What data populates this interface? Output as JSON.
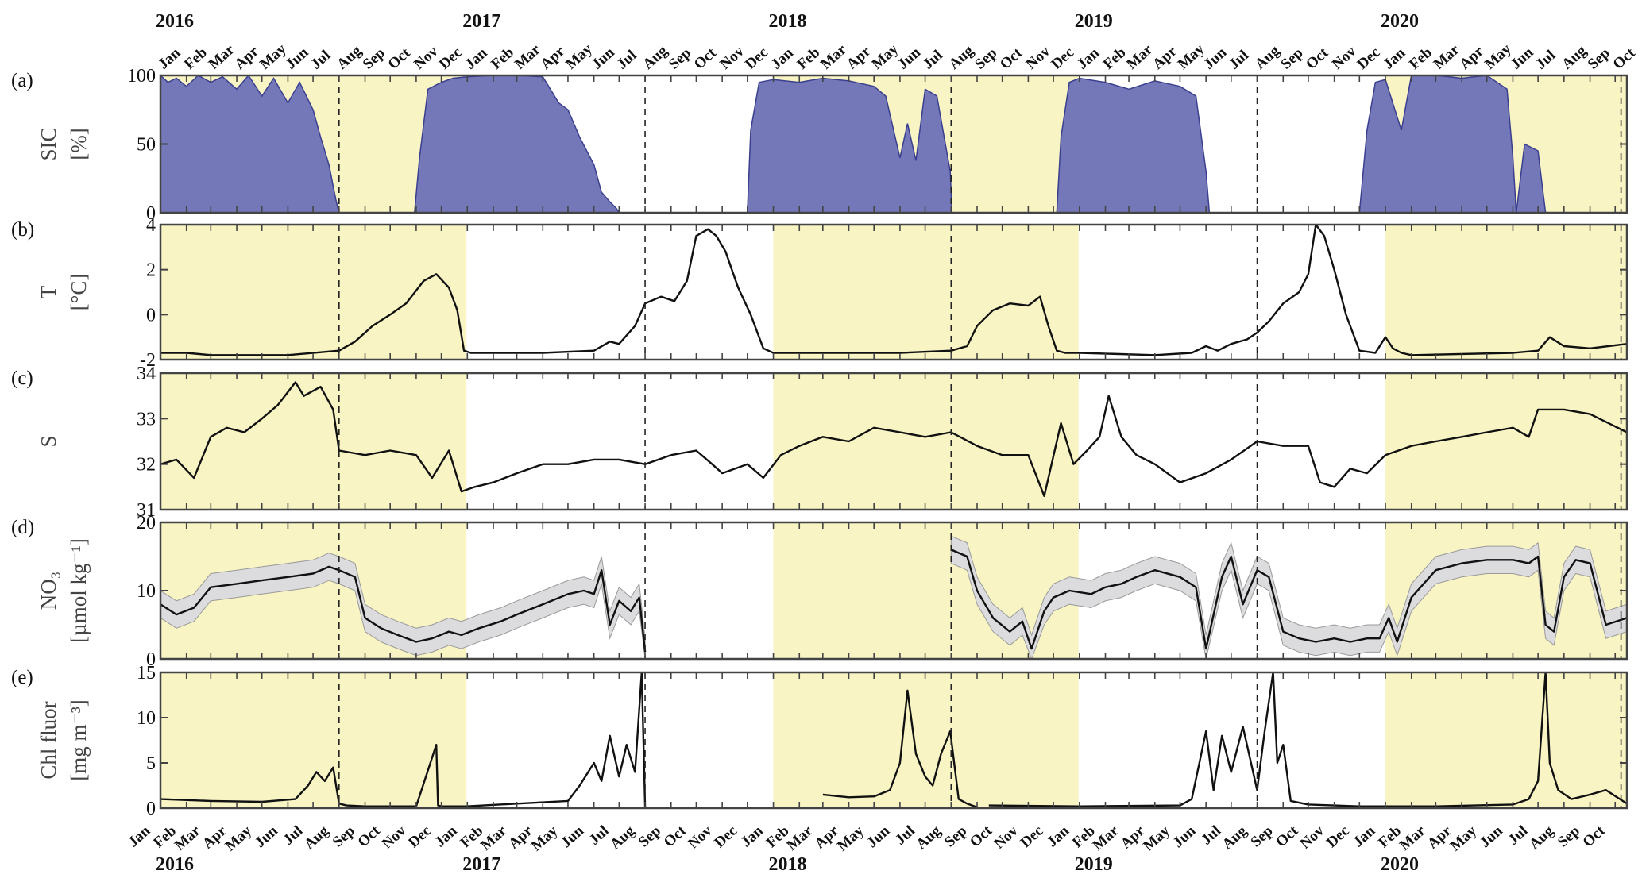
{
  "figure": {
    "years": [
      "2016",
      "2017",
      "2018",
      "2019",
      "2020"
    ],
    "month_labels": [
      "Jan",
      "Feb",
      "Mar",
      "Apr",
      "May",
      "Jun",
      "Jul",
      "Aug",
      "Sep",
      "Oct",
      "Nov",
      "Dec"
    ],
    "date_range": [
      "2016-01-01",
      "2020-10-15"
    ],
    "shaded_periods": [
      [
        "2016-01-01",
        "2016-12-31"
      ],
      [
        "2018-01-01",
        "2018-12-31"
      ],
      [
        "2020-01-01",
        "2020-10-15"
      ]
    ],
    "shaded_color": "#f8f4c4",
    "dashed_lines": [
      "2016-08-01",
      "2017-08-01",
      "2018-08-01",
      "2019-08-01",
      "2020-10-08"
    ]
  },
  "chart_data": [
    {
      "type": "area",
      "panel_label": "(a)",
      "ylabel": [
        "SIC",
        "[%]"
      ],
      "ylim": [
        0,
        100
      ],
      "yticks": [
        0,
        50,
        100
      ],
      "fill_color": "#7578b8",
      "series": [
        {
          "x": [
            "2016-01-01",
            "2016-01-10",
            "2016-01-20",
            "2016-02-01",
            "2016-02-15",
            "2016-03-01",
            "2016-03-15",
            "2016-04-01",
            "2016-04-15",
            "2016-05-01",
            "2016-05-15",
            "2016-06-01",
            "2016-06-15",
            "2016-07-01",
            "2016-07-10",
            "2016-07-20",
            "2016-07-28",
            "2016-08-01",
            "2016-10-30",
            "2016-11-05",
            "2016-11-15",
            "2016-12-01",
            "2016-12-15",
            "2017-01-01",
            "2017-02-01",
            "2017-03-01",
            "2017-04-01",
            "2017-04-20",
            "2017-05-01",
            "2017-05-15",
            "2017-06-01",
            "2017-06-10",
            "2017-06-20",
            "2017-06-28",
            "2017-07-01",
            "2017-12-01",
            "2017-12-05",
            "2017-12-15",
            "2018-01-01",
            "2018-02-01",
            "2018-03-01",
            "2018-04-01",
            "2018-05-01",
            "2018-05-15",
            "2018-06-01",
            "2018-06-10",
            "2018-06-20",
            "2018-07-01",
            "2018-07-15",
            "2018-07-31",
            "2018-08-02",
            "2018-12-05",
            "2018-12-10",
            "2018-12-20",
            "2019-01-01",
            "2019-02-01",
            "2019-03-01",
            "2019-04-01",
            "2019-05-01",
            "2019-05-20",
            "2019-06-01",
            "2019-06-05",
            "2019-12-01",
            "2019-12-10",
            "2019-12-20",
            "2020-01-01",
            "2020-01-20",
            "2020-02-01",
            "2020-03-01",
            "2020-04-01",
            "2020-05-01",
            "2020-05-25",
            "2020-06-01",
            "2020-06-05",
            "2020-06-15",
            "2020-07-01",
            "2020-07-05",
            "2020-07-10",
            "2020-10-15"
          ],
          "values": [
            100,
            95,
            98,
            92,
            100,
            95,
            99,
            90,
            100,
            85,
            98,
            80,
            95,
            75,
            55,
            35,
            10,
            0,
            0,
            40,
            90,
            95,
            98,
            99,
            100,
            100,
            99,
            80,
            75,
            55,
            35,
            15,
            8,
            3,
            0,
            0,
            60,
            95,
            97,
            95,
            98,
            96,
            92,
            85,
            40,
            65,
            38,
            90,
            85,
            30,
            0,
            0,
            55,
            95,
            98,
            95,
            90,
            96,
            92,
            85,
            30,
            0,
            0,
            60,
            95,
            97,
            60,
            100,
            100,
            98,
            100,
            90,
            40,
            0,
            50,
            45,
            25,
            0,
            0
          ]
        }
      ]
    },
    {
      "type": "line",
      "panel_label": "(b)",
      "ylabel": [
        "T",
        "[°C]"
      ],
      "ylim": [
        -2,
        4
      ],
      "yticks": [
        -2,
        0,
        2,
        4
      ],
      "series": [
        {
          "x": [
            "2016-01-01",
            "2016-02-01",
            "2016-03-01",
            "2016-06-01",
            "2016-08-01",
            "2016-08-20",
            "2016-09-10",
            "2016-10-01",
            "2016-10-20",
            "2016-11-10",
            "2016-11-25",
            "2016-12-10",
            "2016-12-20",
            "2016-12-28",
            "2017-01-05",
            "2017-04-01",
            "2017-06-01",
            "2017-06-20",
            "2017-07-01",
            "2017-07-20",
            "2017-08-01",
            "2017-08-20",
            "2017-09-05",
            "2017-09-20",
            "2017-10-01",
            "2017-10-15",
            "2017-10-25",
            "2017-11-05",
            "2017-11-20",
            "2017-12-05",
            "2017-12-20",
            "2018-01-01",
            "2018-06-01",
            "2018-08-01",
            "2018-08-20",
            "2018-09-01",
            "2018-09-20",
            "2018-10-10",
            "2018-11-01",
            "2018-11-15",
            "2018-11-25",
            "2018-12-05",
            "2018-12-15",
            "2019-01-01",
            "2019-04-01",
            "2019-05-15",
            "2019-06-01",
            "2019-06-15",
            "2019-07-01",
            "2019-07-20",
            "2019-08-01",
            "2019-08-15",
            "2019-09-01",
            "2019-09-20",
            "2019-10-01",
            "2019-10-10",
            "2019-10-20",
            "2019-11-01",
            "2019-11-15",
            "2019-12-01",
            "2019-12-20",
            "2020-01-01",
            "2020-01-10",
            "2020-01-20",
            "2020-02-01",
            "2020-06-01",
            "2020-07-01",
            "2020-07-15",
            "2020-08-01",
            "2020-09-01",
            "2020-10-15"
          ],
          "values": [
            -1.7,
            -1.7,
            -1.8,
            -1.8,
            -1.6,
            -1.2,
            -0.5,
            0.0,
            0.5,
            1.5,
            1.8,
            1.2,
            0.2,
            -1.6,
            -1.7,
            -1.7,
            -1.6,
            -1.2,
            -1.3,
            -0.5,
            0.5,
            0.8,
            0.6,
            1.5,
            3.5,
            3.8,
            3.5,
            2.8,
            1.2,
            0.0,
            -1.5,
            -1.7,
            -1.7,
            -1.6,
            -1.4,
            -0.5,
            0.2,
            0.5,
            0.4,
            0.8,
            -0.5,
            -1.6,
            -1.7,
            -1.7,
            -1.8,
            -1.7,
            -1.4,
            -1.6,
            -1.3,
            -1.1,
            -0.8,
            -0.3,
            0.5,
            1.0,
            1.8,
            4.0,
            3.5,
            2.0,
            0.0,
            -1.6,
            -1.7,
            -1.0,
            -1.5,
            -1.7,
            -1.8,
            -1.7,
            -1.6,
            -1.0,
            -1.4,
            -1.5,
            -1.3
          ]
        }
      ]
    },
    {
      "type": "line",
      "panel_label": "(c)",
      "ylabel": [
        "S"
      ],
      "ylim": [
        31,
        34
      ],
      "yticks": [
        31,
        32,
        33,
        34
      ],
      "series": [
        {
          "x": [
            "2016-01-01",
            "2016-01-20",
            "2016-02-10",
            "2016-03-01",
            "2016-03-20",
            "2016-04-10",
            "2016-05-01",
            "2016-05-20",
            "2016-06-10",
            "2016-06-20",
            "2016-07-10",
            "2016-07-25",
            "2016-08-01",
            "2016-09-01",
            "2016-10-01",
            "2016-11-01",
            "2016-11-20",
            "2016-12-10",
            "2016-12-25",
            "2017-01-10",
            "2017-02-01",
            "2017-03-01",
            "2017-04-01",
            "2017-05-01",
            "2017-06-01",
            "2017-07-01",
            "2017-08-01",
            "2017-09-01",
            "2017-10-01",
            "2017-10-20",
            "2017-11-01",
            "2017-12-01",
            "2017-12-20",
            "2018-01-10",
            "2018-02-01",
            "2018-03-01",
            "2018-04-01",
            "2018-05-01",
            "2018-06-01",
            "2018-07-01",
            "2018-08-01",
            "2018-09-01",
            "2018-10-01",
            "2018-11-01",
            "2018-11-20",
            "2018-12-10",
            "2018-12-25",
            "2019-01-10",
            "2019-01-25",
            "2019-02-05",
            "2019-02-20",
            "2019-03-10",
            "2019-04-01",
            "2019-05-01",
            "2019-06-01",
            "2019-07-01",
            "2019-08-01",
            "2019-09-01",
            "2019-10-01",
            "2019-10-15",
            "2019-11-01",
            "2019-11-20",
            "2019-12-10",
            "2020-01-01",
            "2020-02-01",
            "2020-03-01",
            "2020-04-01",
            "2020-05-01",
            "2020-06-01",
            "2020-06-20",
            "2020-07-01",
            "2020-08-01",
            "2020-09-01",
            "2020-10-15"
          ],
          "values": [
            32.0,
            32.1,
            31.7,
            32.6,
            32.8,
            32.7,
            33.0,
            33.3,
            33.8,
            33.5,
            33.7,
            33.2,
            32.3,
            32.2,
            32.3,
            32.2,
            31.7,
            32.3,
            31.4,
            31.5,
            31.6,
            31.8,
            32.0,
            32.0,
            32.1,
            32.1,
            32.0,
            32.2,
            32.3,
            32.0,
            31.8,
            32.0,
            31.7,
            32.2,
            32.4,
            32.6,
            32.5,
            32.8,
            32.7,
            32.6,
            32.7,
            32.4,
            32.2,
            32.2,
            31.3,
            32.9,
            32.0,
            32.3,
            32.6,
            33.5,
            32.6,
            32.2,
            32.0,
            31.6,
            31.8,
            32.1,
            32.5,
            32.4,
            32.4,
            31.6,
            31.5,
            31.9,
            31.8,
            32.2,
            32.4,
            32.5,
            32.6,
            32.7,
            32.8,
            32.6,
            33.2,
            33.2,
            33.1,
            32.7
          ]
        }
      ]
    },
    {
      "type": "line",
      "panel_label": "(d)",
      "ylabel": [
        "NO₃",
        "[µmol kg⁻¹]"
      ],
      "ylim": [
        0,
        20
      ],
      "yticks": [
        0,
        10,
        20
      ],
      "band": 2.0,
      "band_color": "#dcdcde",
      "series": [
        {
          "x": [
            "2016-01-01",
            "2016-01-20",
            "2016-02-10",
            "2016-03-01",
            "2016-04-01",
            "2016-05-01",
            "2016-06-01",
            "2016-07-01",
            "2016-07-20",
            "2016-08-01",
            "2016-08-20",
            "2016-09-01",
            "2016-09-20",
            "2016-10-10",
            "2016-11-01",
            "2016-11-20",
            "2016-12-10",
            "2016-12-25",
            "2017-01-15",
            "2017-02-10",
            "2017-03-01",
            "2017-04-01",
            "2017-05-01",
            "2017-05-20",
            "2017-06-01",
            "2017-06-10",
            "2017-06-20",
            "2017-07-01",
            "2017-07-15",
            "2017-07-25",
            "2017-08-01"
          ],
          "values": [
            8.0,
            6.5,
            7.5,
            10.5,
            11.0,
            11.5,
            12.0,
            12.5,
            13.5,
            13.0,
            12.0,
            6.0,
            4.5,
            3.5,
            2.5,
            3.0,
            4.0,
            3.5,
            4.5,
            5.5,
            6.5,
            8.0,
            9.5,
            10.0,
            9.5,
            13.0,
            5.0,
            8.5,
            7.0,
            9.0,
            1.0
          ]
        },
        {
          "x": [
            "2018-08-01",
            "2018-08-20",
            "2018-09-01",
            "2018-09-20",
            "2018-10-10",
            "2018-10-25",
            "2018-11-05",
            "2018-11-20",
            "2018-12-01",
            "2018-12-20",
            "2019-01-15",
            "2019-02-01",
            "2019-02-20",
            "2019-03-10",
            "2019-04-01",
            "2019-05-01",
            "2019-05-20",
            "2019-06-01",
            "2019-06-20",
            "2019-07-01",
            "2019-07-15",
            "2019-08-01",
            "2019-08-15",
            "2019-09-01",
            "2019-09-20",
            "2019-10-10",
            "2019-11-01",
            "2019-11-20",
            "2019-12-10",
            "2019-12-25",
            "2020-01-05",
            "2020-01-15",
            "2020-02-01",
            "2020-03-01",
            "2020-04-01",
            "2020-05-01",
            "2020-06-01",
            "2020-06-20",
            "2020-07-01",
            "2020-07-10",
            "2020-07-20",
            "2020-08-01",
            "2020-08-15",
            "2020-09-01",
            "2020-09-20",
            "2020-10-15"
          ],
          "values": [
            16.0,
            15.0,
            10.0,
            6.0,
            4.0,
            5.5,
            1.5,
            7.0,
            9.0,
            10.0,
            9.5,
            10.5,
            11.0,
            12.0,
            13.0,
            12.0,
            10.5,
            1.5,
            12.0,
            15.0,
            8.0,
            13.0,
            12.0,
            4.0,
            3.0,
            2.5,
            3.0,
            2.5,
            3.0,
            3.0,
            6.0,
            2.5,
            9.0,
            13.0,
            14.0,
            14.5,
            14.5,
            14.0,
            15.0,
            5.0,
            4.0,
            12.0,
            14.5,
            14.0,
            5.0,
            6.0
          ]
        }
      ]
    },
    {
      "type": "line",
      "panel_label": "(e)",
      "ylabel": [
        "Chl fluor",
        "[mg m⁻³]"
      ],
      "ylim": [
        0,
        15
      ],
      "yticks": [
        0,
        5,
        10,
        15
      ],
      "series": [
        {
          "x": [
            "2016-01-01",
            "2016-03-01",
            "2016-05-01",
            "2016-06-10",
            "2016-06-25",
            "2016-07-05",
            "2016-07-15",
            "2016-07-25",
            "2016-08-01",
            "2016-08-10",
            "2016-09-01",
            "2016-11-01",
            "2016-11-25",
            "2016-11-27",
            "2016-12-01",
            "2016-12-31",
            "2017-03-01",
            "2017-05-01",
            "2017-05-15",
            "2017-06-01",
            "2017-06-10",
            "2017-06-20",
            "2017-07-01",
            "2017-07-10",
            "2017-07-20",
            "2017-07-28",
            "2017-08-01"
          ],
          "values": [
            1.0,
            0.8,
            0.7,
            1.0,
            2.5,
            4.0,
            3.0,
            4.5,
            0.5,
            0.3,
            0.2,
            0.2,
            7.0,
            0.3,
            0.2,
            0.2,
            0.5,
            0.8,
            2.5,
            5.0,
            3.0,
            8.0,
            3.5,
            7.0,
            4.0,
            15.0,
            0.0
          ]
        },
        {
          "x": [
            "2018-03-01",
            "2018-04-01",
            "2018-05-01",
            "2018-05-20",
            "2018-06-01",
            "2018-06-10",
            "2018-06-20",
            "2018-07-01",
            "2018-07-10",
            "2018-07-20",
            "2018-07-31",
            "2018-08-10",
            "2018-08-20",
            "2018-09-01"
          ],
          "values": [
            1.5,
            1.2,
            1.3,
            2.0,
            5.0,
            13.0,
            6.0,
            3.5,
            2.5,
            6.0,
            8.5,
            1.0,
            0.5,
            0.1
          ]
        },
        {
          "x": [
            "2018-09-15",
            "2019-01-01",
            "2019-05-01",
            "2019-05-15",
            "2019-06-01",
            "2019-06-10",
            "2019-06-20",
            "2019-07-01",
            "2019-07-15",
            "2019-08-01",
            "2019-08-10",
            "2019-08-20",
            "2019-08-25",
            "2019-09-01",
            "2019-09-10",
            "2019-10-01",
            "2019-12-01",
            "2020-03-01",
            "2020-06-01",
            "2020-06-20",
            "2020-07-01",
            "2020-07-10",
            "2020-07-15",
            "2020-07-25",
            "2020-08-10",
            "2020-09-01",
            "2020-09-20",
            "2020-10-15"
          ],
          "values": [
            0.3,
            0.2,
            0.3,
            1.0,
            8.5,
            2.0,
            8.0,
            4.0,
            9.0,
            2.0,
            8.5,
            15.0,
            5.0,
            7.0,
            0.8,
            0.4,
            0.2,
            0.2,
            0.4,
            1.0,
            3.0,
            15.0,
            5.0,
            2.0,
            1.0,
            1.5,
            2.0,
            0.5
          ]
        }
      ]
    }
  ]
}
